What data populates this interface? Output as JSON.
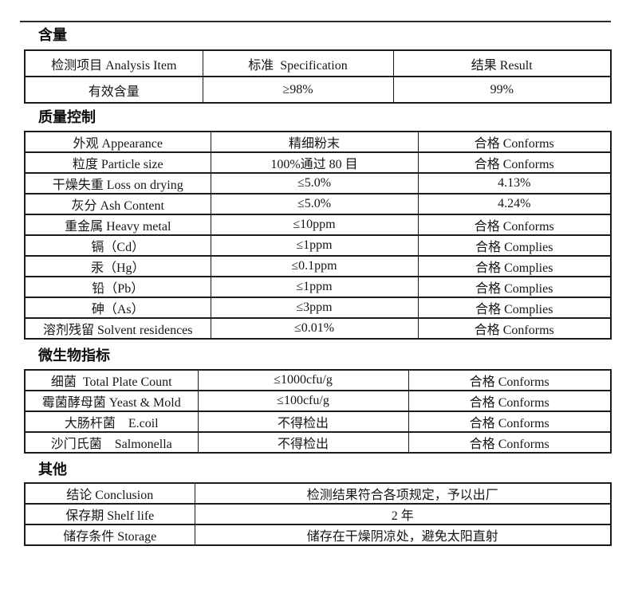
{
  "document": {
    "sections": [
      {
        "heading": "含量",
        "header_row": [
          "检测项目 Analysis Item",
          "标准  Specification",
          "结果 Result"
        ],
        "rows": [
          [
            "有效含量",
            "≥98%",
            "99%"
          ]
        ]
      },
      {
        "heading": "质量控制",
        "rows": [
          [
            "外观 Appearance",
            "精细粉末",
            "合格 Conforms"
          ],
          [
            "粒度 Particle size",
            "100%通过 80 目",
            "合格 Conforms"
          ],
          [
            "干燥失重 Loss on drying",
            "≤5.0%",
            "4.13%"
          ],
          [
            "灰分 Ash Content",
            "≤5.0%",
            "4.24%"
          ],
          [
            "重金属 Heavy metal",
            "≤10ppm",
            "合格 Conforms"
          ],
          [
            "镉（Cd）",
            "≤1ppm",
            "合格 Complies"
          ],
          [
            "汞（Hg）",
            "≤0.1ppm",
            "合格 Complies"
          ],
          [
            "铅（Pb）",
            "≤1ppm",
            "合格 Complies"
          ],
          [
            "砷（As）",
            "≤3ppm",
            "合格 Complies"
          ],
          [
            "溶剂残留 Solvent residences",
            "≤0.01%",
            "合格 Conforms"
          ]
        ]
      },
      {
        "heading": "微生物指标",
        "rows": [
          [
            "细菌  Total Plate Count",
            "≤1000cfu/g",
            "合格 Conforms"
          ],
          [
            "霉菌酵母菌 Yeast & Mold",
            "≤100cfu/g",
            "合格 Conforms"
          ],
          [
            "大肠杆菌　E.coil",
            "不得检出",
            "合格 Conforms"
          ],
          [
            "沙门氏菌　Salmonella",
            "不得检出",
            "合格 Conforms"
          ]
        ]
      },
      {
        "heading": "其他",
        "rows": [
          [
            "结论 Conclusion",
            "检测结果符合各项规定，予以出厂"
          ],
          [
            "保存期 Shelf life",
            "2 年"
          ],
          [
            "储存条件 Storage",
            "储存在干燥阴凉处，避免太阳直射"
          ]
        ]
      }
    ]
  }
}
